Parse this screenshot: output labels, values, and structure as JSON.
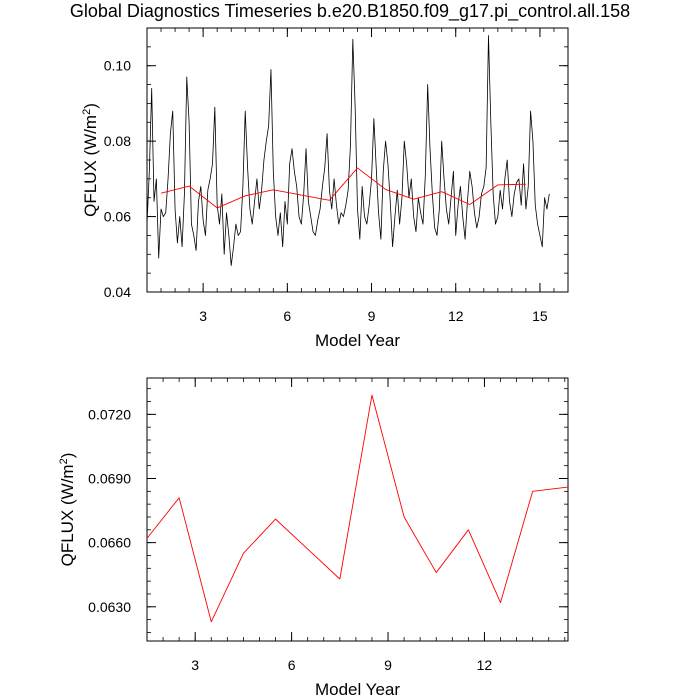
{
  "figure": {
    "title": "Global Diagnostics Timeseries b.e20.B1850.f09_g17.pi_control.all.158"
  },
  "chart_data": [
    {
      "type": "line",
      "xlabel": "Model Year",
      "ylabel_text": "QFLUX (W/m",
      "ylabel_sup": "2",
      "ylabel_tail": ")",
      "xlim": [
        1,
        16
      ],
      "ylim": [
        0.04,
        0.11
      ],
      "xticks": [
        3,
        6,
        9,
        12,
        15
      ],
      "yticks": [
        0.04,
        0.06,
        0.08,
        0.1
      ],
      "ytick_labels": [
        "0.04",
        "0.06",
        "0.08",
        "0.10"
      ],
      "series": [
        {
          "style": "monthly",
          "color": "#000000",
          "x_start": 1.0,
          "x_step": 0.0833333,
          "values": [
            0.058,
            0.072,
            0.094,
            0.064,
            0.07,
            0.049,
            0.062,
            0.06,
            0.061,
            0.07,
            0.082,
            0.088,
            0.062,
            0.053,
            0.06,
            0.052,
            0.066,
            0.097,
            0.085,
            0.058,
            0.055,
            0.051,
            0.064,
            0.068,
            0.059,
            0.055,
            0.067,
            0.07,
            0.074,
            0.089,
            0.063,
            0.058,
            0.066,
            0.05,
            0.061,
            0.055,
            0.047,
            0.052,
            0.058,
            0.055,
            0.056,
            0.068,
            0.088,
            0.073,
            0.062,
            0.058,
            0.064,
            0.07,
            0.062,
            0.067,
            0.075,
            0.08,
            0.084,
            0.099,
            0.072,
            0.06,
            0.055,
            0.061,
            0.052,
            0.064,
            0.058,
            0.074,
            0.078,
            0.072,
            0.068,
            0.06,
            0.058,
            0.066,
            0.078,
            0.064,
            0.06,
            0.056,
            0.055,
            0.059,
            0.062,
            0.068,
            0.073,
            0.082,
            0.067,
            0.062,
            0.07,
            0.063,
            0.058,
            0.061,
            0.06,
            0.063,
            0.067,
            0.079,
            0.107,
            0.089,
            0.062,
            0.054,
            0.068,
            0.06,
            0.058,
            0.063,
            0.07,
            0.086,
            0.073,
            0.061,
            0.054,
            0.072,
            0.08,
            0.074,
            0.064,
            0.052,
            0.06,
            0.067,
            0.058,
            0.065,
            0.08,
            0.074,
            0.065,
            0.07,
            0.06,
            0.056,
            0.065,
            0.061,
            0.058,
            0.071,
            0.095,
            0.078,
            0.066,
            0.057,
            0.055,
            0.062,
            0.08,
            0.07,
            0.062,
            0.058,
            0.065,
            0.072,
            0.055,
            0.063,
            0.068,
            0.06,
            0.054,
            0.064,
            0.072,
            0.068,
            0.061,
            0.057,
            0.06,
            0.066,
            0.068,
            0.073,
            0.108,
            0.085,
            0.066,
            0.058,
            0.06,
            0.067,
            0.062,
            0.07,
            0.075,
            0.064,
            0.06,
            0.066,
            0.069,
            0.07,
            0.063,
            0.074,
            0.062,
            0.068,
            0.088,
            0.08,
            0.063,
            0.058,
            0.055,
            0.052,
            0.065,
            0.062,
            0.066
          ]
        },
        {
          "style": "annual",
          "color": "#ff0000",
          "x": [
            1.5,
            2.5,
            3.5,
            4.5,
            5.5,
            6.5,
            7.5,
            8.5,
            9.5,
            10.5,
            11.5,
            12.5,
            13.5,
            14.5
          ],
          "values": [
            0.0662,
            0.0681,
            0.0623,
            0.0655,
            0.0671,
            0.0657,
            0.0643,
            0.0729,
            0.0672,
            0.0646,
            0.0666,
            0.0632,
            0.0684,
            0.0686
          ]
        }
      ]
    },
    {
      "type": "line",
      "xlabel": "Model Year",
      "ylabel_text": "QFLUX (W/m",
      "ylabel_sup": "2",
      "ylabel_tail": ")",
      "xlim": [
        1.5,
        14.6
      ],
      "ylim": [
        0.0614,
        0.0737
      ],
      "xticks": [
        3,
        6,
        9,
        12
      ],
      "yticks": [
        0.063,
        0.066,
        0.069,
        0.072
      ],
      "ytick_labels": [
        "0.0630",
        "0.0660",
        "0.0690",
        "0.0720"
      ],
      "series": [
        {
          "style": "annual",
          "color": "#ff0000",
          "x": [
            1.5,
            2.5,
            3.5,
            4.5,
            5.5,
            6.5,
            7.5,
            8.5,
            9.5,
            10.5,
            11.5,
            12.5,
            13.5,
            14.6
          ],
          "values": [
            0.0662,
            0.0681,
            0.0623,
            0.0655,
            0.0671,
            0.0657,
            0.0643,
            0.0729,
            0.0672,
            0.0646,
            0.0666,
            0.0632,
            0.0684,
            0.0686
          ]
        }
      ]
    }
  ]
}
